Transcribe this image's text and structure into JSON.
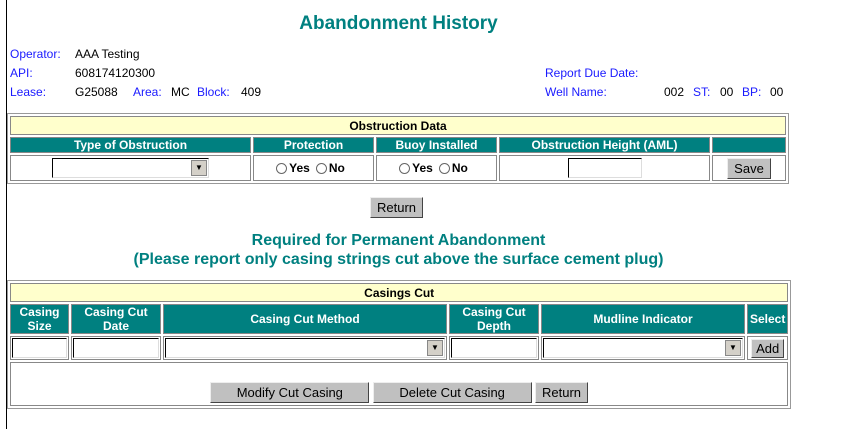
{
  "title": "Abandonment History",
  "info": {
    "operator_label": "Operator:",
    "operator": "AAA Testing",
    "api_label": "API:",
    "api": "608174120300",
    "lease_label": "Lease:",
    "lease": "G25088",
    "area_label": "Area:",
    "area": "MC",
    "block_label": "Block:",
    "block": "409",
    "report_due_label": "Report Due Date:",
    "well_name_label": "Well Name:",
    "well_name": "002",
    "st_label": "ST:",
    "st": "00",
    "bp_label": "BP:",
    "bp": "00"
  },
  "obstruction": {
    "caption": "Obstruction Data",
    "headers": [
      "Type of Obstruction",
      "Protection",
      "Buoy Installed",
      "Obstruction Height (AML)",
      ""
    ],
    "yes": "Yes",
    "no": "No",
    "save": "Save"
  },
  "return_label": "Return",
  "section": {
    "line1": "Required for Permanent Abandonment",
    "line2": "(Please report only casing strings cut above the surface cement plug)"
  },
  "casings": {
    "caption": "Casings Cut",
    "headers": [
      "Casing Size",
      "Casing Cut Date",
      "Casing Cut Method",
      "Casing Cut Depth",
      "Mudline Indicator",
      "Select"
    ],
    "add": "Add",
    "modify": "Modify Cut Casing",
    "delete": "Delete Cut Casing",
    "return": "Return"
  }
}
